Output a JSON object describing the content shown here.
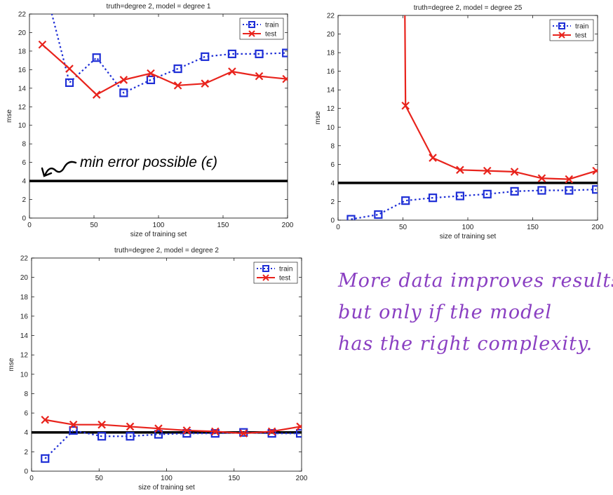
{
  "annotations": {
    "min_error_label": "min error possible (ϵ)",
    "note_lines": [
      "More data improves results,",
      "but only if the model",
      "has the right complexity."
    ]
  },
  "colors": {
    "train": "#1f2fd6",
    "test": "#e8231c",
    "reference": "#000000",
    "annotation": "#8a3fc2"
  },
  "chart_data": [
    {
      "type": "line",
      "title": "truth=degree 2, model = degree 1",
      "xlabel": "size of training set",
      "ylabel": "mse",
      "xlim": [
        0,
        200
      ],
      "ylim": [
        0,
        22
      ],
      "xticks": [
        0,
        50,
        100,
        150,
        200
      ],
      "yticks": [
        0,
        2,
        4,
        6,
        8,
        10,
        12,
        14,
        16,
        18,
        20,
        22
      ],
      "legend_position": "top-right",
      "grid": false,
      "reference_line": 4,
      "x": [
        10,
        31,
        52,
        73,
        94,
        115,
        136,
        157,
        178,
        199
      ],
      "series": [
        {
          "name": "train",
          "style": "dotted-square",
          "values": [
            26,
            14.6,
            17.3,
            13.5,
            14.9,
            16.1,
            17.4,
            17.7,
            17.7,
            17.8
          ]
        },
        {
          "name": "test",
          "style": "solid-x",
          "values": [
            18.7,
            16.1,
            13.3,
            14.9,
            15.6,
            14.3,
            14.5,
            15.8,
            15.3,
            15.0
          ]
        }
      ]
    },
    {
      "type": "line",
      "title": "truth=degree 2, model = degree 25",
      "xlabel": "size of training set",
      "ylabel": "mse",
      "xlim": [
        0,
        200
      ],
      "ylim": [
        0,
        22
      ],
      "xticks": [
        0,
        50,
        100,
        150,
        200
      ],
      "yticks": [
        0,
        2,
        4,
        6,
        8,
        10,
        12,
        14,
        16,
        18,
        20,
        22
      ],
      "legend_position": "top-right",
      "grid": false,
      "reference_line": 4,
      "x": [
        10,
        31,
        52,
        73,
        94,
        115,
        136,
        157,
        178,
        199
      ],
      "series": [
        {
          "name": "train",
          "style": "dotted-square",
          "values": [
            0.1,
            0.6,
            2.1,
            2.4,
            2.6,
            2.8,
            3.1,
            3.2,
            3.2,
            3.3
          ]
        },
        {
          "name": "test",
          "style": "solid-x",
          "values": [
            null,
            null,
            12.3,
            6.7,
            5.4,
            5.3,
            5.2,
            4.5,
            4.4,
            5.3
          ]
        }
      ]
    },
    {
      "type": "line",
      "title": "truth=degree 2, model = degree 2",
      "xlabel": "size of training set",
      "ylabel": "mse",
      "xlim": [
        0,
        200
      ],
      "ylim": [
        0,
        22
      ],
      "xticks": [
        0,
        50,
        100,
        150,
        200
      ],
      "yticks": [
        0,
        2,
        4,
        6,
        8,
        10,
        12,
        14,
        16,
        18,
        20,
        22
      ],
      "legend_position": "top-right",
      "grid": false,
      "reference_line": 4,
      "x": [
        10,
        31,
        52,
        73,
        94,
        115,
        136,
        157,
        178,
        199
      ],
      "series": [
        {
          "name": "train",
          "style": "dotted-square",
          "values": [
            1.3,
            4.2,
            3.6,
            3.6,
            3.8,
            3.9,
            3.9,
            4.0,
            3.9,
            3.9
          ]
        },
        {
          "name": "test",
          "style": "solid-x",
          "values": [
            5.3,
            4.8,
            4.8,
            4.6,
            4.4,
            4.2,
            4.1,
            3.9,
            4.1,
            4.6
          ]
        }
      ]
    }
  ]
}
